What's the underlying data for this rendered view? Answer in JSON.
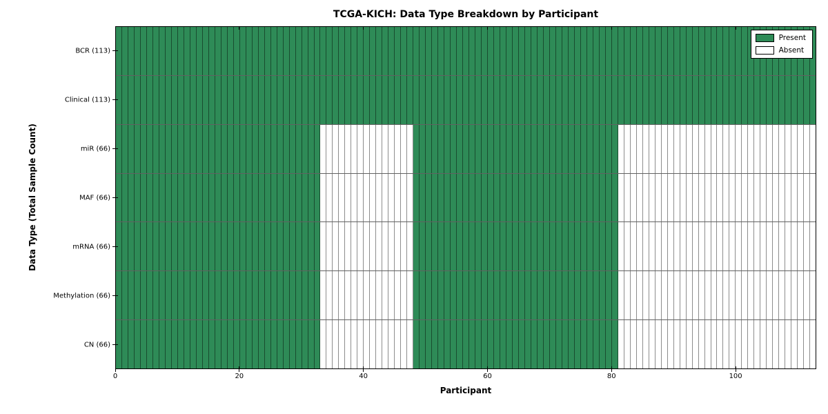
{
  "title": "TCGA-KICH: Data Type Breakdown by Participant",
  "chart_data": {
    "type": "heatmap",
    "title": "TCGA-KICH: Data Type Breakdown by Participant",
    "xlabel": "Participant",
    "ylabel": "Data Type (Total Sample Count)",
    "xlim": [
      0,
      113
    ],
    "n_participants": 113,
    "x_ticks": [
      0,
      20,
      40,
      60,
      80,
      100
    ],
    "grid": "cell-borders",
    "legend_position": "upper-right",
    "legend": [
      {
        "label": "Present",
        "color": "#2e8b57"
      },
      {
        "label": "Absent",
        "color": "#ffffff"
      }
    ],
    "colors": {
      "present": "#2e8b57",
      "absent": "#ffffff",
      "cell_edge": "#000000"
    },
    "rows": [
      {
        "name": "bcr",
        "label": "BCR (113)",
        "total_samples": 113,
        "present_ranges": [
          [
            0,
            113
          ]
        ]
      },
      {
        "name": "clinical",
        "label": "Clinical (113)",
        "total_samples": 113,
        "present_ranges": [
          [
            0,
            113
          ]
        ]
      },
      {
        "name": "mir",
        "label": "miR (66)",
        "total_samples": 66,
        "present_ranges": [
          [
            0,
            33
          ],
          [
            48,
            81
          ]
        ]
      },
      {
        "name": "maf",
        "label": "MAF (66)",
        "total_samples": 66,
        "present_ranges": [
          [
            0,
            33
          ],
          [
            48,
            81
          ]
        ]
      },
      {
        "name": "mrna",
        "label": "mRNA (66)",
        "total_samples": 66,
        "present_ranges": [
          [
            0,
            33
          ],
          [
            48,
            81
          ]
        ]
      },
      {
        "name": "methylation",
        "label": "Methylation (66)",
        "total_samples": 66,
        "present_ranges": [
          [
            0,
            33
          ],
          [
            48,
            81
          ]
        ]
      },
      {
        "name": "cn",
        "label": "CN (66)",
        "total_samples": 66,
        "present_ranges": [
          [
            0,
            33
          ],
          [
            48,
            81
          ]
        ]
      }
    ]
  }
}
